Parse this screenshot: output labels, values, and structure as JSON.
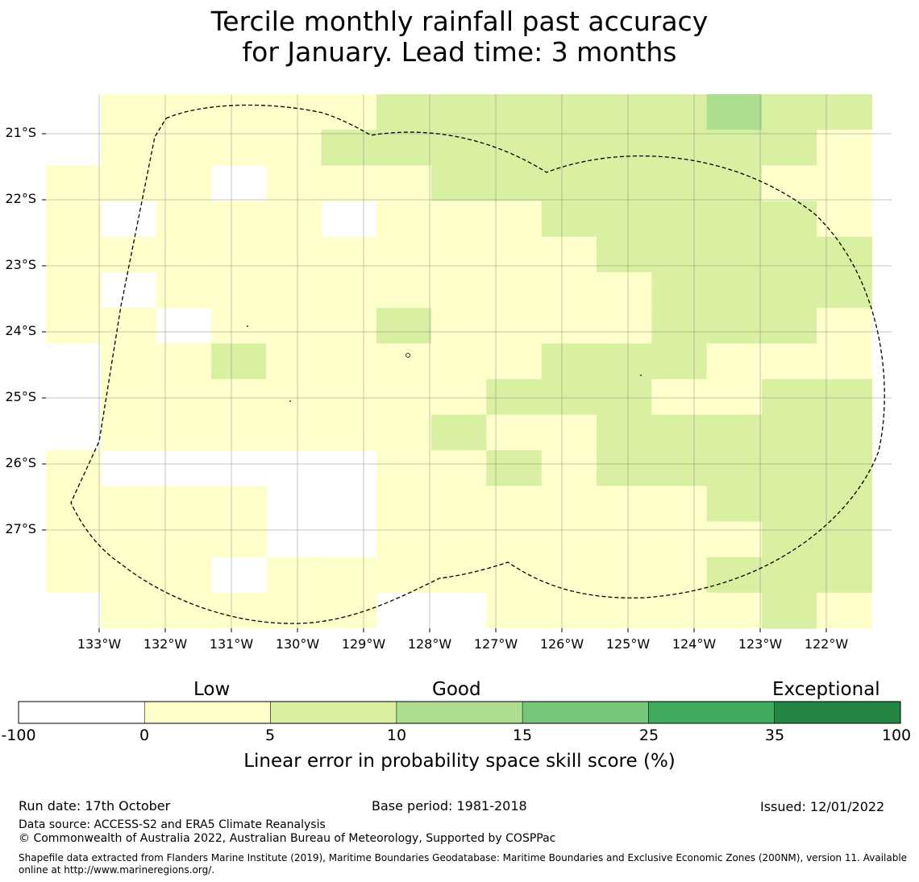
{
  "title": {
    "line1": "Tercile monthly rainfall past accuracy",
    "line2": "for January. Lead time: 3 months"
  },
  "map": {
    "lat_labels": [
      "21°S",
      "22°S",
      "23°S",
      "24°S",
      "25°S",
      "26°S",
      "27°S"
    ],
    "lon_labels": [
      "133°W",
      "132°W",
      "131°W",
      "130°W",
      "129°W",
      "128°W",
      "127°W",
      "126°W",
      "125°W",
      "124°W",
      "123°W",
      "122°W"
    ],
    "boundary_style": "dashed",
    "grid": true
  },
  "colorbar": {
    "headings": [
      "Low",
      "Good",
      "Exceptional"
    ],
    "ticks": [
      "-100",
      "0",
      "5",
      "10",
      "15",
      "25",
      "35",
      "100"
    ],
    "colors": [
      "#ffffff",
      "#ffffcc",
      "#d9f0a3",
      "#addd8e",
      "#78c679",
      "#41ab5d",
      "#238443"
    ],
    "label": "Linear error in probability space skill score (%)"
  },
  "footer": {
    "run_date": "Run date: 17th October",
    "base_period": "Base period: 1981-2018",
    "issued": "Issued: 12/01/2022",
    "data_source": "Data source: ACCESS-S2 and ERA5 Climate Reanalysis",
    "copyright": "© Commonwealth of Australia 2022, Australian Bureau of Meteorology, Supported by COSPPac",
    "shapefile_1": "Shapefile data extracted from Flanders Marine Institute (2019), Maritime Boundaries Geodatabase: Maritime Boundaries and Exclusive Economic Zones (200NM), version 11. Available",
    "shapefile_2": "online at http://www.marineregions.org/."
  }
}
